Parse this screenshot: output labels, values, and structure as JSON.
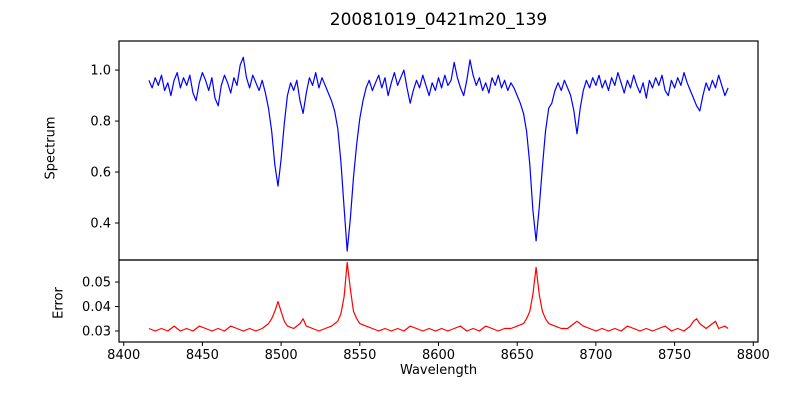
{
  "figure": {
    "title": "20081019_0421m20_139",
    "background_color": "#ffffff",
    "axis_color": "#000000"
  },
  "chart_data": {
    "type": "line",
    "title": "20081019_0421m20_139",
    "xlabel": "Wavelength",
    "xlim": [
      8397,
      8803
    ],
    "xticks": [
      8400,
      8450,
      8500,
      8550,
      8600,
      8650,
      8700,
      8750,
      8800
    ],
    "grid": false,
    "legend": "none",
    "panels": [
      {
        "name": "spectrum",
        "ylabel": "Spectrum",
        "ylim": [
          0.255,
          1.114
        ],
        "yticks": [
          "0.4",
          "0.6",
          "0.8",
          "1.0"
        ],
        "ytick_values": [
          0.4,
          0.6,
          0.8,
          1.0
        ],
        "line_color": "#0000ff",
        "description": "Normalized stellar spectrum, continuum near 0.96 with noise; Ca II triplet absorption lines at ~8498 (depth 0.54), ~8542 (depth 0.29), ~8662 (depth 0.33) and weaker line at ~8688 (depth 0.75)",
        "points": [
          [
            8416,
            0.96
          ],
          [
            8418,
            0.93
          ],
          [
            8420,
            0.97
          ],
          [
            8422,
            0.94
          ],
          [
            8424,
            0.98
          ],
          [
            8426,
            0.92
          ],
          [
            8428,
            0.95
          ],
          [
            8430,
            0.9
          ],
          [
            8432,
            0.96
          ],
          [
            8434,
            0.99
          ],
          [
            8436,
            0.93
          ],
          [
            8438,
            0.97
          ],
          [
            8440,
            0.94
          ],
          [
            8442,
            0.98
          ],
          [
            8444,
            0.91
          ],
          [
            8446,
            0.88
          ],
          [
            8448,
            0.95
          ],
          [
            8450,
            0.99
          ],
          [
            8452,
            0.96
          ],
          [
            8454,
            0.92
          ],
          [
            8456,
            0.97
          ],
          [
            8458,
            0.89
          ],
          [
            8460,
            0.86
          ],
          [
            8462,
            0.94
          ],
          [
            8464,
            0.98
          ],
          [
            8466,
            0.95
          ],
          [
            8468,
            0.91
          ],
          [
            8470,
            0.97
          ],
          [
            8472,
            0.94
          ],
          [
            8474,
            1.02
          ],
          [
            8476,
            1.05
          ],
          [
            8478,
            0.97
          ],
          [
            8480,
            0.93
          ],
          [
            8482,
            0.98
          ],
          [
            8484,
            0.95
          ],
          [
            8486,
            0.92
          ],
          [
            8488,
            0.96
          ],
          [
            8490,
            0.91
          ],
          [
            8492,
            0.85
          ],
          [
            8494,
            0.76
          ],
          [
            8496,
            0.63
          ],
          [
            8498,
            0.545
          ],
          [
            8500,
            0.65
          ],
          [
            8502,
            0.79
          ],
          [
            8504,
            0.9
          ],
          [
            8506,
            0.95
          ],
          [
            8508,
            0.92
          ],
          [
            8510,
            0.96
          ],
          [
            8512,
            0.88
          ],
          [
            8514,
            0.83
          ],
          [
            8516,
            0.91
          ],
          [
            8518,
            0.97
          ],
          [
            8520,
            0.94
          ],
          [
            8522,
            0.99
          ],
          [
            8524,
            0.93
          ],
          [
            8526,
            0.97
          ],
          [
            8528,
            0.94
          ],
          [
            8530,
            0.91
          ],
          [
            8532,
            0.88
          ],
          [
            8534,
            0.84
          ],
          [
            8536,
            0.77
          ],
          [
            8538,
            0.64
          ],
          [
            8540,
            0.46
          ],
          [
            8542,
            0.29
          ],
          [
            8544,
            0.42
          ],
          [
            8546,
            0.58
          ],
          [
            8548,
            0.71
          ],
          [
            8550,
            0.81
          ],
          [
            8552,
            0.88
          ],
          [
            8554,
            0.93
          ],
          [
            8556,
            0.96
          ],
          [
            8558,
            0.92
          ],
          [
            8560,
            0.95
          ],
          [
            8562,
            0.98
          ],
          [
            8564,
            0.93
          ],
          [
            8566,
            0.97
          ],
          [
            8568,
            0.9
          ],
          [
            8570,
            0.95
          ],
          [
            8572,
            0.99
          ],
          [
            8574,
            0.94
          ],
          [
            8576,
            0.97
          ],
          [
            8578,
            1.0
          ],
          [
            8580,
            0.93
          ],
          [
            8582,
            0.87
          ],
          [
            8584,
            0.92
          ],
          [
            8586,
            0.96
          ],
          [
            8588,
            0.93
          ],
          [
            8590,
            0.98
          ],
          [
            8592,
            0.94
          ],
          [
            8594,
            0.9
          ],
          [
            8596,
            0.95
          ],
          [
            8598,
            0.92
          ],
          [
            8600,
            0.97
          ],
          [
            8602,
            0.93
          ],
          [
            8604,
            0.98
          ],
          [
            8606,
            0.94
          ],
          [
            8608,
            0.96
          ],
          [
            8610,
            1.03
          ],
          [
            8612,
            0.97
          ],
          [
            8614,
            0.93
          ],
          [
            8616,
            0.9
          ],
          [
            8618,
            0.96
          ],
          [
            8620,
            1.04
          ],
          [
            8622,
            0.98
          ],
          [
            8624,
            0.94
          ],
          [
            8626,
            0.97
          ],
          [
            8628,
            0.92
          ],
          [
            8630,
            0.95
          ],
          [
            8632,
            0.91
          ],
          [
            8634,
            0.97
          ],
          [
            8636,
            0.94
          ],
          [
            8638,
            0.98
          ],
          [
            8640,
            0.93
          ],
          [
            8642,
            0.96
          ],
          [
            8644,
            0.92
          ],
          [
            8646,
            0.95
          ],
          [
            8648,
            0.93
          ],
          [
            8650,
            0.9
          ],
          [
            8652,
            0.87
          ],
          [
            8654,
            0.83
          ],
          [
            8656,
            0.76
          ],
          [
            8658,
            0.63
          ],
          [
            8660,
            0.45
          ],
          [
            8662,
            0.33
          ],
          [
            8664,
            0.46
          ],
          [
            8666,
            0.62
          ],
          [
            8668,
            0.76
          ],
          [
            8670,
            0.85
          ],
          [
            8672,
            0.87
          ],
          [
            8674,
            0.92
          ],
          [
            8676,
            0.95
          ],
          [
            8678,
            0.92
          ],
          [
            8680,
            0.96
          ],
          [
            8682,
            0.93
          ],
          [
            8684,
            0.9
          ],
          [
            8686,
            0.84
          ],
          [
            8688,
            0.75
          ],
          [
            8690,
            0.85
          ],
          [
            8692,
            0.92
          ],
          [
            8694,
            0.96
          ],
          [
            8696,
            0.93
          ],
          [
            8698,
            0.97
          ],
          [
            8700,
            0.94
          ],
          [
            8702,
            0.98
          ],
          [
            8704,
            0.93
          ],
          [
            8706,
            0.96
          ],
          [
            8708,
            0.92
          ],
          [
            8710,
            0.97
          ],
          [
            8712,
            0.94
          ],
          [
            8714,
            0.99
          ],
          [
            8716,
            0.95
          ],
          [
            8718,
            0.91
          ],
          [
            8720,
            0.96
          ],
          [
            8722,
            0.93
          ],
          [
            8724,
            0.98
          ],
          [
            8726,
            0.94
          ],
          [
            8728,
            0.91
          ],
          [
            8730,
            0.95
          ],
          [
            8732,
            0.89
          ],
          [
            8734,
            0.96
          ],
          [
            8736,
            0.93
          ],
          [
            8738,
            0.97
          ],
          [
            8740,
            0.94
          ],
          [
            8742,
            0.98
          ],
          [
            8744,
            0.92
          ],
          [
            8746,
            0.9
          ],
          [
            8748,
            0.96
          ],
          [
            8750,
            0.93
          ],
          [
            8752,
            0.97
          ],
          [
            8754,
            0.94
          ],
          [
            8756,
            0.99
          ],
          [
            8758,
            0.95
          ],
          [
            8760,
            0.92
          ],
          [
            8762,
            0.89
          ],
          [
            8764,
            0.86
          ],
          [
            8766,
            0.84
          ],
          [
            8768,
            0.9
          ],
          [
            8770,
            0.95
          ],
          [
            8772,
            0.92
          ],
          [
            8774,
            0.96
          ],
          [
            8776,
            0.93
          ],
          [
            8778,
            0.98
          ],
          [
            8780,
            0.94
          ],
          [
            8782,
            0.9
          ],
          [
            8784,
            0.93
          ]
        ]
      },
      {
        "name": "error",
        "ylabel": "Error",
        "ylim": [
          0.0255,
          0.059
        ],
        "yticks": [
          "0.03",
          "0.04",
          "0.05"
        ],
        "ytick_values": [
          0.03,
          0.04,
          0.05
        ],
        "line_color": "#ff0000",
        "description": "Error spectrum, baseline ~0.031 with peaks at the absorption lines: ~0.042 at 8498, ~0.058 at 8542, ~0.056 at 8662",
        "points": [
          [
            8416,
            0.031
          ],
          [
            8420,
            0.03
          ],
          [
            8424,
            0.031
          ],
          [
            8428,
            0.03
          ],
          [
            8432,
            0.032
          ],
          [
            8436,
            0.03
          ],
          [
            8440,
            0.031
          ],
          [
            8444,
            0.03
          ],
          [
            8448,
            0.032
          ],
          [
            8452,
            0.031
          ],
          [
            8456,
            0.03
          ],
          [
            8460,
            0.031
          ],
          [
            8464,
            0.03
          ],
          [
            8468,
            0.032
          ],
          [
            8472,
            0.031
          ],
          [
            8476,
            0.03
          ],
          [
            8480,
            0.031
          ],
          [
            8484,
            0.03
          ],
          [
            8488,
            0.031
          ],
          [
            8492,
            0.033
          ],
          [
            8494,
            0.035
          ],
          [
            8496,
            0.038
          ],
          [
            8498,
            0.042
          ],
          [
            8500,
            0.038
          ],
          [
            8502,
            0.034
          ],
          [
            8504,
            0.032
          ],
          [
            8508,
            0.031
          ],
          [
            8512,
            0.033
          ],
          [
            8514,
            0.035
          ],
          [
            8516,
            0.032
          ],
          [
            8520,
            0.031
          ],
          [
            8524,
            0.03
          ],
          [
            8528,
            0.031
          ],
          [
            8532,
            0.032
          ],
          [
            8536,
            0.034
          ],
          [
            8538,
            0.037
          ],
          [
            8540,
            0.044
          ],
          [
            8542,
            0.058
          ],
          [
            8544,
            0.047
          ],
          [
            8546,
            0.038
          ],
          [
            8548,
            0.035
          ],
          [
            8550,
            0.033
          ],
          [
            8554,
            0.032
          ],
          [
            8558,
            0.031
          ],
          [
            8562,
            0.03
          ],
          [
            8566,
            0.031
          ],
          [
            8570,
            0.03
          ],
          [
            8574,
            0.031
          ],
          [
            8578,
            0.03
          ],
          [
            8582,
            0.032
          ],
          [
            8586,
            0.031
          ],
          [
            8590,
            0.03
          ],
          [
            8594,
            0.031
          ],
          [
            8598,
            0.03
          ],
          [
            8602,
            0.031
          ],
          [
            8606,
            0.03
          ],
          [
            8610,
            0.031
          ],
          [
            8614,
            0.032
          ],
          [
            8618,
            0.03
          ],
          [
            8622,
            0.031
          ],
          [
            8626,
            0.03
          ],
          [
            8630,
            0.032
          ],
          [
            8634,
            0.031
          ],
          [
            8638,
            0.03
          ],
          [
            8642,
            0.031
          ],
          [
            8646,
            0.031
          ],
          [
            8650,
            0.032
          ],
          [
            8654,
            0.033
          ],
          [
            8656,
            0.035
          ],
          [
            8658,
            0.038
          ],
          [
            8660,
            0.045
          ],
          [
            8662,
            0.056
          ],
          [
            8664,
            0.045
          ],
          [
            8666,
            0.038
          ],
          [
            8668,
            0.035
          ],
          [
            8670,
            0.033
          ],
          [
            8674,
            0.032
          ],
          [
            8678,
            0.031
          ],
          [
            8682,
            0.031
          ],
          [
            8686,
            0.033
          ],
          [
            8688,
            0.034
          ],
          [
            8692,
            0.032
          ],
          [
            8696,
            0.031
          ],
          [
            8700,
            0.03
          ],
          [
            8704,
            0.031
          ],
          [
            8708,
            0.03
          ],
          [
            8712,
            0.031
          ],
          [
            8716,
            0.03
          ],
          [
            8720,
            0.032
          ],
          [
            8724,
            0.031
          ],
          [
            8728,
            0.03
          ],
          [
            8732,
            0.031
          ],
          [
            8736,
            0.03
          ],
          [
            8740,
            0.031
          ],
          [
            8744,
            0.032
          ],
          [
            8748,
            0.03
          ],
          [
            8752,
            0.031
          ],
          [
            8756,
            0.03
          ],
          [
            8760,
            0.032
          ],
          [
            8762,
            0.034
          ],
          [
            8764,
            0.035
          ],
          [
            8766,
            0.033
          ],
          [
            8770,
            0.031
          ],
          [
            8774,
            0.033
          ],
          [
            8776,
            0.034
          ],
          [
            8778,
            0.031
          ],
          [
            8782,
            0.032
          ],
          [
            8784,
            0.031
          ]
        ]
      }
    ]
  }
}
